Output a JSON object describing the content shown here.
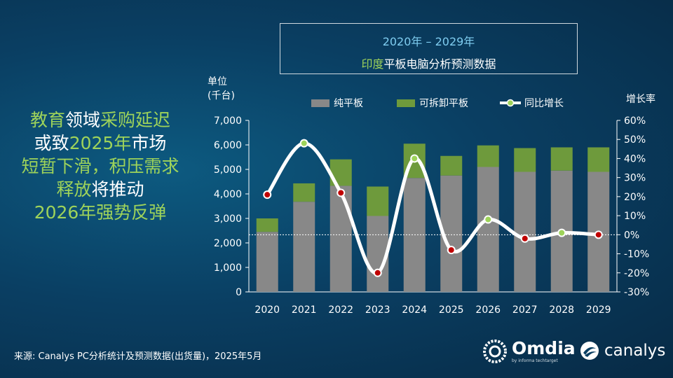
{
  "headline": {
    "line1": [
      {
        "t": "教育",
        "hl": true
      },
      {
        "t": "领域",
        "hl": false
      },
      {
        "t": "采购延迟",
        "hl": true
      }
    ],
    "line2": [
      {
        "t": "或致",
        "hl": false
      },
      {
        "t": "2025年",
        "hl": true
      },
      {
        "t": "市场",
        "hl": false
      }
    ],
    "line3": [
      {
        "t": "短暂下滑，积压需求",
        "hl": true
      }
    ],
    "line4": [
      {
        "t": "释放",
        "hl": true
      },
      {
        "t": "将推动",
        "hl": false
      }
    ],
    "line5": [
      {
        "t": "2026年强势反弹",
        "hl": true
      }
    ]
  },
  "title": {
    "line1": "2020年 – 2029年",
    "line2_accent": "印度",
    "line2_rest": "平板电脑分析预测数据"
  },
  "unit_label": {
    "line1": "单位",
    "line2": "(千台)"
  },
  "right_axis_label": "增长率",
  "legend": {
    "pure": "纯平板",
    "detachable": "可拆卸平板",
    "growth": "同比增长"
  },
  "source": "来源: Canalys PC分析统计及预测数据(出货量)，2025年5月",
  "logos": {
    "omdia": "Omdia",
    "omdia_sub": "by informa techtarget",
    "canalys": "canalys"
  },
  "colors": {
    "pure": "#888888",
    "detachable": "#6e9a3c",
    "highlight": "#9ed35a",
    "marker_down": "#c00000",
    "marker_up": "#9ed35a",
    "line": "#ffffff"
  },
  "chart_data": {
    "type": "bar",
    "title": "2020年 – 2029年 印度平板电脑分析预测数据",
    "xlabel": "",
    "ylabel": "单位 (千台)",
    "y2label": "增长率",
    "categories": [
      "2020",
      "2021",
      "2022",
      "2023",
      "2024",
      "2025",
      "2026",
      "2027",
      "2028",
      "2029"
    ],
    "series": [
      {
        "name": "纯平板",
        "type": "bar",
        "stack": "total",
        "values": [
          2450,
          3680,
          4330,
          3100,
          4650,
          4750,
          5100,
          4900,
          4950,
          4900
        ]
      },
      {
        "name": "可拆卸平板",
        "type": "bar",
        "stack": "total",
        "values": [
          550,
          750,
          1080,
          1200,
          1400,
          800,
          880,
          970,
          950,
          1000
        ]
      },
      {
        "name": "同比增长",
        "type": "line",
        "axis": "right",
        "values": [
          21,
          48,
          22,
          -20,
          40,
          -8,
          8,
          -2,
          1,
          0
        ],
        "unit": "%"
      }
    ],
    "ylim": [
      0,
      7000
    ],
    "yticks": [
      "0",
      "1,000",
      "2,000",
      "3,000",
      "4,000",
      "5,000",
      "6,000",
      "7,000"
    ],
    "y2lim": [
      -30,
      60
    ],
    "y2ticks": [
      "-30%",
      "-20%",
      "-10%",
      "0%",
      "10%",
      "20%",
      "30%",
      "40%",
      "50%",
      "60%"
    ],
    "grid": false,
    "legend_position": "top"
  }
}
